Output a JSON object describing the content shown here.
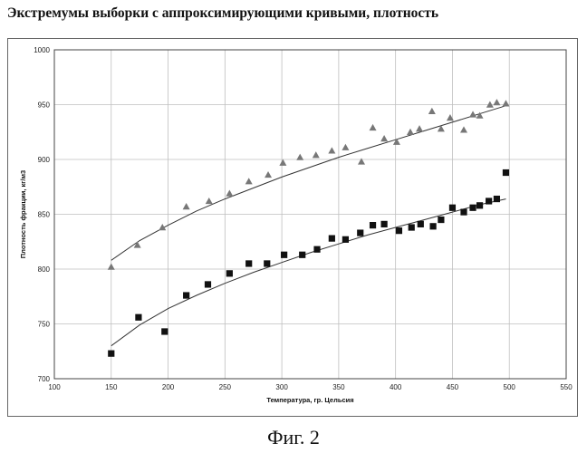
{
  "title": "Экстремумы выборки с аппроксимирующими кривыми, плотность",
  "caption": "Фиг. 2",
  "chart_data": {
    "type": "scatter",
    "xlabel": "Температура, гр. Цельсия",
    "ylabel": "Плотность фракции, кг/м3",
    "xlim": [
      100,
      550
    ],
    "ylim": [
      700,
      1000
    ],
    "xticks": [
      100,
      150,
      200,
      250,
      300,
      350,
      400,
      450,
      500,
      550
    ],
    "yticks": [
      700,
      750,
      800,
      850,
      900,
      950,
      1000
    ],
    "grid": true,
    "legend": "none",
    "series": [
      {
        "marker": "triangle",
        "color": "#777777",
        "points": [
          [
            150,
            802
          ],
          [
            173,
            822
          ],
          [
            195,
            838
          ],
          [
            216,
            857
          ],
          [
            236,
            862
          ],
          [
            254,
            869
          ],
          [
            271,
            880
          ],
          [
            288,
            886
          ],
          [
            301,
            897
          ],
          [
            316,
            902
          ],
          [
            330,
            904
          ],
          [
            344,
            908
          ],
          [
            356,
            911
          ],
          [
            370,
            898
          ],
          [
            380,
            929
          ],
          [
            390,
            919
          ],
          [
            401,
            916
          ],
          [
            413,
            925
          ],
          [
            421,
            928
          ],
          [
            432,
            944
          ],
          [
            440,
            928
          ],
          [
            448,
            938
          ],
          [
            460,
            927
          ],
          [
            468,
            941
          ],
          [
            474,
            940
          ],
          [
            483,
            950
          ],
          [
            489,
            952
          ],
          [
            497,
            951
          ]
        ],
        "trend": [
          [
            150,
            808
          ],
          [
            175,
            826
          ],
          [
            200,
            840
          ],
          [
            225,
            853
          ],
          [
            250,
            864
          ],
          [
            275,
            874
          ],
          [
            300,
            884
          ],
          [
            325,
            893
          ],
          [
            350,
            902
          ],
          [
            375,
            910
          ],
          [
            400,
            918
          ],
          [
            425,
            926
          ],
          [
            450,
            934
          ],
          [
            475,
            942
          ],
          [
            497,
            949
          ]
        ]
      },
      {
        "marker": "square",
        "color": "#111111",
        "points": [
          [
            150,
            723
          ],
          [
            174,
            756
          ],
          [
            197,
            743
          ],
          [
            216,
            776
          ],
          [
            235,
            786
          ],
          [
            254,
            796
          ],
          [
            271,
            805
          ],
          [
            287,
            805
          ],
          [
            302,
            813
          ],
          [
            318,
            813
          ],
          [
            331,
            818
          ],
          [
            344,
            828
          ],
          [
            356,
            827
          ],
          [
            369,
            833
          ],
          [
            380,
            840
          ],
          [
            390,
            841
          ],
          [
            403,
            835
          ],
          [
            414,
            838
          ],
          [
            422,
            841
          ],
          [
            433,
            839
          ],
          [
            440,
            845
          ],
          [
            450,
            856
          ],
          [
            460,
            852
          ],
          [
            468,
            856
          ],
          [
            474,
            858
          ],
          [
            482,
            862
          ],
          [
            489,
            864
          ],
          [
            497,
            888
          ]
        ],
        "trend": [
          [
            150,
            730
          ],
          [
            175,
            749
          ],
          [
            200,
            764
          ],
          [
            225,
            776
          ],
          [
            250,
            787
          ],
          [
            275,
            797
          ],
          [
            300,
            806
          ],
          [
            325,
            815
          ],
          [
            350,
            823
          ],
          [
            375,
            831
          ],
          [
            400,
            838
          ],
          [
            425,
            845
          ],
          [
            450,
            852
          ],
          [
            475,
            859
          ],
          [
            497,
            864
          ]
        ]
      }
    ]
  }
}
